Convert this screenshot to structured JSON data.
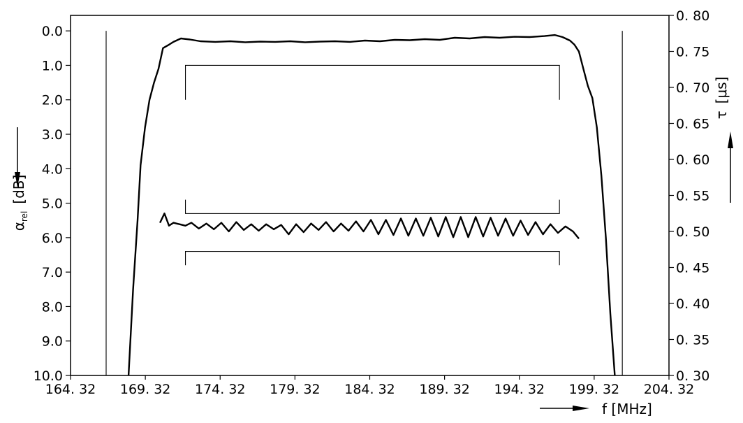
{
  "chart_data": {
    "type": "line",
    "xlabel": "f  [MHz]",
    "ylabel_left": {
      "symbol": "α",
      "subscript": "rel",
      "unit": "[dB]"
    },
    "ylabel_right": {
      "symbol": "τ",
      "unit": "[μs]"
    },
    "x_ticks": [
      "164. 32",
      "169. 32",
      "174. 32",
      "179. 32",
      "184. 32",
      "189. 32",
      "194. 32",
      "199. 32",
      "204. 32"
    ],
    "x_tick_values": [
      164.32,
      169.32,
      174.32,
      179.32,
      184.32,
      189.32,
      194.32,
      199.32,
      204.32
    ],
    "xlim": [
      164.32,
      204.32
    ],
    "y_left_ticks": [
      "0.0",
      "1.0",
      "2.0",
      "3.0",
      "4.0",
      "5.0",
      "6.0",
      "7.0",
      "8.0",
      "9.0",
      "10.0"
    ],
    "y_left_tick_values": [
      0,
      1,
      2,
      3,
      4,
      5,
      6,
      7,
      8,
      9,
      10
    ],
    "y_left_range": [
      -0.45,
      10
    ],
    "y_left_inverted": true,
    "y_right_ticks": [
      "0. 30",
      "0. 35",
      "0. 40",
      "0. 45",
      "0. 50",
      "0. 55",
      "0. 60",
      "0. 65",
      "0. 70",
      "0. 75",
      "0. 80"
    ],
    "y_right_tick_values": [
      0.3,
      0.35,
      0.4,
      0.45,
      0.5,
      0.55,
      0.6,
      0.65,
      0.7,
      0.75,
      0.8
    ],
    "y_right_range": [
      0.3,
      0.8
    ],
    "vertical_lines_x": [
      166.7,
      201.2
    ],
    "series": [
      {
        "axis": "left",
        "x": [
          168.2,
          168.5,
          168.8,
          169.0,
          169.3,
          169.6,
          169.9,
          170.2,
          170.5,
          170.9,
          171.2,
          171.7,
          172.3,
          173.0,
          174.0,
          175.0,
          176.0,
          177.0,
          178.0,
          179.0,
          180.0,
          181.0,
          182.0,
          183.0,
          184.0,
          185.0,
          186.0,
          187.0,
          188.0,
          189.0,
          190.0,
          191.0,
          192.0,
          193.0,
          194.0,
          195.0,
          196.0,
          196.7,
          197.2,
          197.7,
          198.0,
          198.3,
          198.6,
          198.9,
          199.2,
          199.5,
          199.8,
          200.1,
          200.4,
          200.7
        ],
        "y": [
          10.0,
          7.5,
          5.5,
          3.9,
          2.8,
          2.0,
          1.5,
          1.1,
          0.5,
          0.4,
          0.32,
          0.22,
          0.25,
          0.3,
          0.32,
          0.3,
          0.33,
          0.31,
          0.32,
          0.3,
          0.33,
          0.31,
          0.3,
          0.32,
          0.28,
          0.3,
          0.26,
          0.27,
          0.24,
          0.26,
          0.2,
          0.22,
          0.18,
          0.2,
          0.17,
          0.18,
          0.15,
          0.12,
          0.18,
          0.28,
          0.4,
          0.6,
          1.1,
          1.6,
          1.95,
          2.8,
          4.2,
          6.0,
          8.2,
          10.0
        ]
      },
      {
        "axis": "right",
        "x": [
          170.3,
          170.6,
          170.9,
          171.2,
          171.6,
          172.0,
          172.4,
          172.9,
          173.4,
          173.9,
          174.4,
          174.9,
          175.4,
          175.9,
          176.4,
          176.9,
          177.4,
          177.9,
          178.4,
          178.9,
          179.4,
          179.9,
          180.4,
          180.9,
          181.4,
          181.9,
          182.4,
          182.9,
          183.4,
          183.9,
          184.4,
          184.9,
          185.4,
          185.9,
          186.4,
          186.9,
          187.4,
          187.9,
          188.4,
          188.9,
          189.4,
          189.9,
          190.4,
          190.9,
          191.4,
          191.9,
          192.4,
          192.9,
          193.4,
          193.9,
          194.4,
          194.9,
          195.4,
          195.9,
          196.4,
          196.9,
          197.4,
          197.9,
          198.3
        ],
        "y": [
          0.512,
          0.525,
          0.508,
          0.512,
          0.51,
          0.508,
          0.512,
          0.504,
          0.511,
          0.503,
          0.512,
          0.5,
          0.513,
          0.502,
          0.51,
          0.501,
          0.51,
          0.503,
          0.509,
          0.496,
          0.51,
          0.499,
          0.511,
          0.502,
          0.513,
          0.5,
          0.511,
          0.501,
          0.514,
          0.5,
          0.516,
          0.496,
          0.516,
          0.495,
          0.518,
          0.494,
          0.518,
          0.494,
          0.519,
          0.493,
          0.52,
          0.492,
          0.52,
          0.492,
          0.52,
          0.493,
          0.519,
          0.494,
          0.518,
          0.494,
          0.515,
          0.495,
          0.513,
          0.496,
          0.51,
          0.498,
          0.507,
          0.5,
          0.49
        ]
      }
    ],
    "tolerance_brackets": [
      {
        "axis": "left",
        "x_start": 172.0,
        "x_end": 197.0,
        "level": 1.0,
        "tick_toward": 2.0
      },
      {
        "axis": "left",
        "x_start": 172.0,
        "x_end": 197.0,
        "level": 5.3,
        "tick_toward": 4.9
      },
      {
        "axis": "left",
        "x_start": 172.0,
        "x_end": 197.0,
        "level": 6.4,
        "tick_toward": 6.8
      }
    ]
  }
}
